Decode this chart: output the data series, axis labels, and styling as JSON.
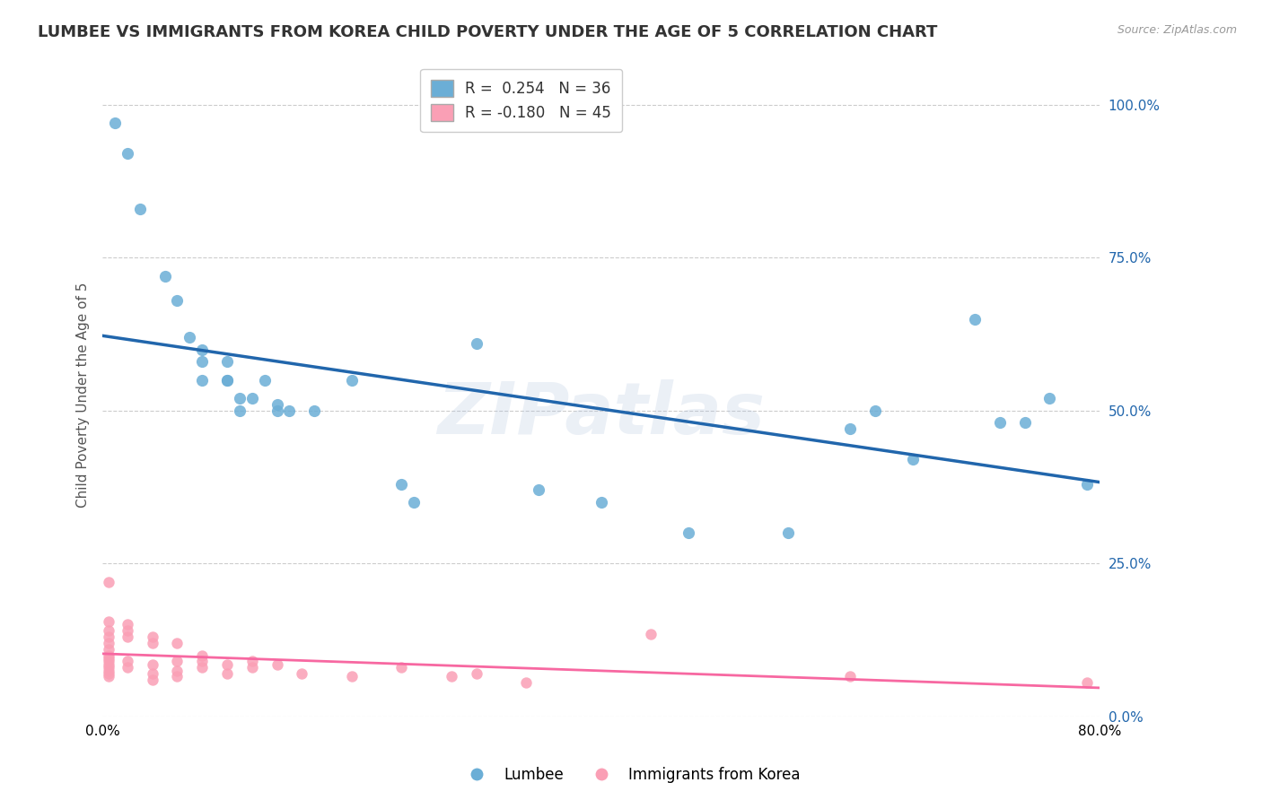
{
  "title": "LUMBEE VS IMMIGRANTS FROM KOREA CHILD POVERTY UNDER THE AGE OF 5 CORRELATION CHART",
  "source_text": "Source: ZipAtlas.com",
  "ylabel": "Child Poverty Under the Age of 5",
  "xlabel_lumbee": "Lumbee",
  "xlabel_korea": "Immigrants from Korea",
  "watermark": "ZIPatlas",
  "lumbee_R": 0.254,
  "lumbee_N": 36,
  "korea_R": -0.18,
  "korea_N": 45,
  "lumbee_color": "#6baed6",
  "korea_color": "#fa9fb5",
  "lumbee_line_color": "#2166ac",
  "korea_line_color": "#f768a1",
  "lumbee_scatter": [
    [
      1.0,
      97.0
    ],
    [
      2.0,
      92.0
    ],
    [
      3.0,
      83.0
    ],
    [
      5.0,
      72.0
    ],
    [
      6.0,
      68.0
    ],
    [
      7.0,
      62.0
    ],
    [
      8.0,
      60.0
    ],
    [
      8.0,
      58.0
    ],
    [
      8.0,
      55.0
    ],
    [
      10.0,
      55.0
    ],
    [
      10.0,
      58.0
    ],
    [
      10.0,
      55.0
    ],
    [
      11.0,
      52.0
    ],
    [
      11.0,
      50.0
    ],
    [
      12.0,
      52.0
    ],
    [
      13.0,
      55.0
    ],
    [
      14.0,
      51.0
    ],
    [
      14.0,
      50.0
    ],
    [
      15.0,
      50.0
    ],
    [
      17.0,
      50.0
    ],
    [
      20.0,
      55.0
    ],
    [
      24.0,
      38.0
    ],
    [
      25.0,
      35.0
    ],
    [
      30.0,
      61.0
    ],
    [
      35.0,
      37.0
    ],
    [
      40.0,
      35.0
    ],
    [
      47.0,
      30.0
    ],
    [
      55.0,
      30.0
    ],
    [
      60.0,
      47.0
    ],
    [
      62.0,
      50.0
    ],
    [
      65.0,
      42.0
    ],
    [
      70.0,
      65.0
    ],
    [
      72.0,
      48.0
    ],
    [
      74.0,
      48.0
    ],
    [
      76.0,
      52.0
    ],
    [
      79.0,
      38.0
    ]
  ],
  "korea_scatter": [
    [
      0.5,
      15.5
    ],
    [
      0.5,
      14.0
    ],
    [
      0.5,
      13.0
    ],
    [
      0.5,
      12.0
    ],
    [
      0.5,
      11.0
    ],
    [
      0.5,
      10.0
    ],
    [
      0.5,
      9.5
    ],
    [
      0.5,
      9.0
    ],
    [
      0.5,
      8.5
    ],
    [
      0.5,
      8.0
    ],
    [
      0.5,
      7.5
    ],
    [
      0.5,
      7.0
    ],
    [
      0.5,
      6.5
    ],
    [
      0.5,
      22.0
    ],
    [
      2.0,
      15.0
    ],
    [
      2.0,
      14.0
    ],
    [
      2.0,
      13.0
    ],
    [
      2.0,
      9.0
    ],
    [
      2.0,
      8.0
    ],
    [
      4.0,
      13.0
    ],
    [
      4.0,
      12.0
    ],
    [
      4.0,
      8.5
    ],
    [
      4.0,
      7.0
    ],
    [
      4.0,
      6.0
    ],
    [
      6.0,
      12.0
    ],
    [
      6.0,
      9.0
    ],
    [
      6.0,
      7.5
    ],
    [
      6.0,
      6.5
    ],
    [
      8.0,
      10.0
    ],
    [
      8.0,
      9.0
    ],
    [
      8.0,
      8.0
    ],
    [
      10.0,
      8.5
    ],
    [
      10.0,
      7.0
    ],
    [
      12.0,
      9.0
    ],
    [
      12.0,
      8.0
    ],
    [
      14.0,
      8.5
    ],
    [
      16.0,
      7.0
    ],
    [
      20.0,
      6.5
    ],
    [
      24.0,
      8.0
    ],
    [
      28.0,
      6.5
    ],
    [
      30.0,
      7.0
    ],
    [
      34.0,
      5.5
    ],
    [
      44.0,
      13.5
    ],
    [
      60.0,
      6.5
    ],
    [
      79.0,
      5.5
    ]
  ],
  "xmin": 0.0,
  "xmax": 80.0,
  "ymin": 0.0,
  "ymax": 105.0,
  "yticks": [
    0.0,
    25.0,
    50.0,
    75.0,
    100.0
  ],
  "ytick_labels": [
    "0.0%",
    "25.0%",
    "50.0%",
    "75.0%",
    "100.0%"
  ],
  "xtick_positions": [
    0.0,
    20.0,
    40.0,
    60.0,
    80.0
  ],
  "xtick_labels": [
    "0.0%",
    "",
    "",
    "",
    "80.0%"
  ],
  "grid_color": "#cccccc",
  "background_color": "#ffffff",
  "title_fontsize": 13,
  "axis_label_fontsize": 11,
  "tick_fontsize": 11,
  "legend_fontsize": 12
}
